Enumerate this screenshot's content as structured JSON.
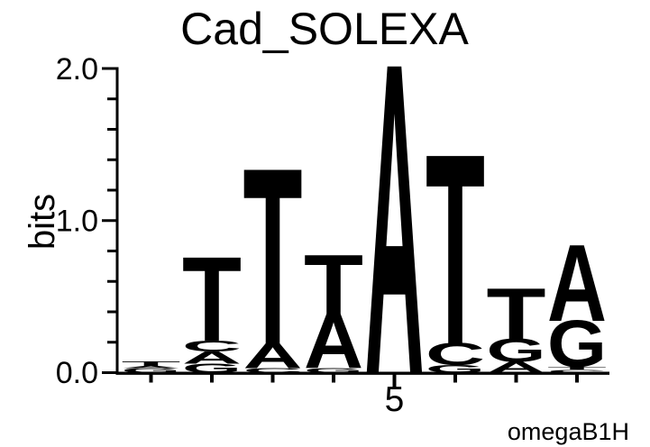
{
  "title": "Cad_SOLEXA",
  "y_axis": {
    "label": "bits",
    "ticks": [
      "2.0",
      "1.0",
      "0.0"
    ]
  },
  "x_axis": {
    "tick_label": "5",
    "labeled_position": 5
  },
  "signature": "omegaB1H",
  "colors": {
    "A": "#007C00",
    "C": "#0000DD",
    "G": "#FFA500",
    "T": "#FF0000",
    "axis": "#000000",
    "text": "#000000",
    "background": "#FFFFFF"
  },
  "chart_data": {
    "type": "bar",
    "variant": "sequence-logo-stacked-letters",
    "title": "Cad_SOLEXA",
    "xlabel": "",
    "ylabel": "bits",
    "units": "bits",
    "ylim": [
      0,
      2
    ],
    "yticks_major": [
      0,
      1,
      2
    ],
    "yticks_minor": [
      0.2,
      0.4,
      0.6,
      0.8,
      1.2,
      1.4,
      1.6,
      1.8
    ],
    "x_positions": [
      1,
      2,
      3,
      4,
      5,
      6,
      7,
      8
    ],
    "x_tick_labeled_position": 5,
    "grid": false,
    "letters_order": "bottom-to-top",
    "stacks": [
      {
        "position": 1,
        "total_bits": 0.075,
        "letters": [
          {
            "base": "G",
            "bits": 0.03
          },
          {
            "base": "A",
            "bits": 0.015
          },
          {
            "base": "T",
            "bits": 0.03
          }
        ]
      },
      {
        "position": 2,
        "total_bits": 0.75,
        "letters": [
          {
            "base": "G",
            "bits": 0.06
          },
          {
            "base": "A",
            "bits": 0.08
          },
          {
            "base": "C",
            "bits": 0.07
          },
          {
            "base": "T",
            "bits": 0.54
          }
        ]
      },
      {
        "position": 3,
        "total_bits": 1.32,
        "letters": [
          {
            "base": "C",
            "bits": 0.03
          },
          {
            "base": "A",
            "bits": 0.16
          },
          {
            "base": "T",
            "bits": 1.13
          }
        ]
      },
      {
        "position": 4,
        "total_bits": 0.77,
        "letters": [
          {
            "base": "G",
            "bits": 0.03
          },
          {
            "base": "A",
            "bits": 0.35
          },
          {
            "base": "T",
            "bits": 0.39
          }
        ]
      },
      {
        "position": 5,
        "total_bits": 1.99,
        "letters": [
          {
            "base": "A",
            "bits": 1.99
          }
        ]
      },
      {
        "position": 6,
        "total_bits": 1.41,
        "letters": [
          {
            "base": "G",
            "bits": 0.05
          },
          {
            "base": "C",
            "bits": 0.14
          },
          {
            "base": "T",
            "bits": 1.22
          }
        ]
      },
      {
        "position": 7,
        "total_bits": 0.55,
        "letters": [
          {
            "base": "A",
            "bits": 0.07
          },
          {
            "base": "G",
            "bits": 0.15
          },
          {
            "base": "T",
            "bits": 0.33
          }
        ]
      },
      {
        "position": 8,
        "total_bits": 0.83,
        "letters": [
          {
            "base": "C",
            "bits": 0.02
          },
          {
            "base": "T",
            "bits": 0.02
          },
          {
            "base": "G",
            "bits": 0.3
          },
          {
            "base": "A",
            "bits": 0.49
          }
        ]
      }
    ]
  }
}
